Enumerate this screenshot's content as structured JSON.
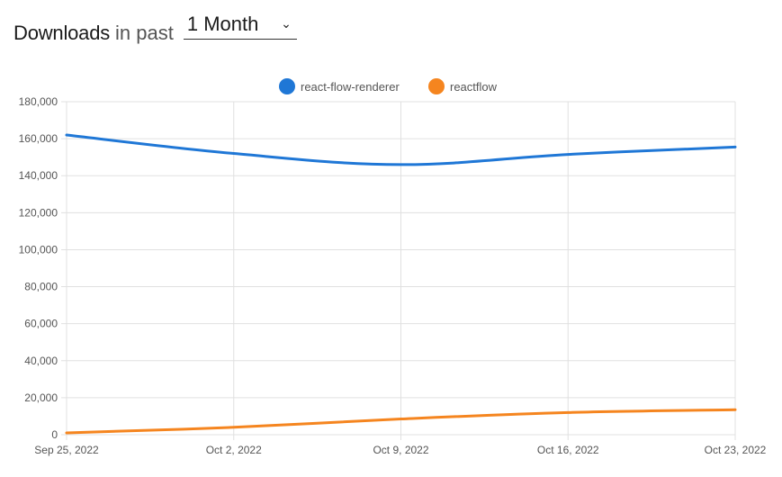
{
  "header": {
    "title": "Downloads",
    "subtitle": "in past",
    "period": "1 Month",
    "period_options": [
      "1 Month"
    ]
  },
  "icons": {
    "period_dropdown": "chevron-down-icon"
  },
  "colors": {
    "react_flow_renderer": "#1f77d6",
    "reactflow": "#f5851f",
    "grid": "#e0e0e0"
  },
  "chart_data": {
    "type": "line",
    "title": "",
    "xlabel": "",
    "ylabel": "",
    "categories": [
      "Sep 25, 2022",
      "Oct 2, 2022",
      "Oct 9, 2022",
      "Oct 16, 2022",
      "Oct 23, 2022"
    ],
    "ylim": [
      0,
      180000
    ],
    "yticks": [
      "0",
      "20,000",
      "40,000",
      "60,000",
      "80,000",
      "100,000",
      "120,000",
      "140,000",
      "160,000",
      "180,000"
    ],
    "grid": true,
    "legend": "top-center",
    "series": [
      {
        "name": "react-flow-renderer",
        "color": "#1f77d6",
        "values": [
          162000,
          152000,
          146000,
          151500,
          155500
        ]
      },
      {
        "name": "reactflow",
        "color": "#f5851f",
        "values": [
          1000,
          4000,
          8500,
          12000,
          13500
        ]
      }
    ]
  }
}
